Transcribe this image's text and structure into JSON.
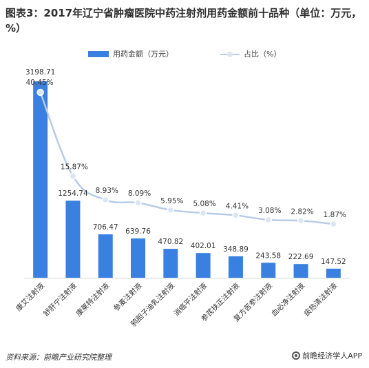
{
  "header": {
    "title": "图表3：2017年辽宁省肿瘤医院中药注射剂用药金额前十品种（单位：万元，%）"
  },
  "footer": {
    "source": "资料来源：前瞻产业研究院整理",
    "brand": "前瞻经济学人APP"
  },
  "colors": {
    "bar": "#3a80e0",
    "line": "#b7cce6",
    "marker": "#dbe6f4"
  },
  "chart_data": {
    "type": "bar",
    "categories": [
      "康艾注射液",
      "舒肝宁注射液",
      "康莱特注射液",
      "参麦注射液",
      "鸦胆子油乳注射液",
      "消癌平注射液",
      "参芪扶正注射液",
      "复方苦参注射液",
      "血必净注射液",
      "痰热清注射液"
    ],
    "series": [
      {
        "name": "用药金额（万元）",
        "type": "bar",
        "values": [
          3198.71,
          1254.74,
          706.47,
          639.76,
          470.82,
          402.01,
          348.89,
          243.58,
          222.69,
          147.52
        ],
        "labels": [
          "3198.71",
          "1254.74",
          "706.47",
          "639.76",
          "470.82",
          "402.01",
          "348.89",
          "243.58",
          "222.69",
          "147.52"
        ]
      },
      {
        "name": "占比（%）",
        "type": "line",
        "values": [
          40.45,
          15.87,
          8.93,
          8.09,
          5.95,
          5.08,
          4.41,
          3.08,
          2.82,
          1.87
        ],
        "labels": [
          "40.45%",
          "15.87%",
          "8.93%",
          "8.09%",
          "5.95%",
          "5.08%",
          "4.41%",
          "3.08%",
          "2.82%",
          "1.87%"
        ]
      }
    ],
    "legend": "top-center",
    "grid": false
  }
}
